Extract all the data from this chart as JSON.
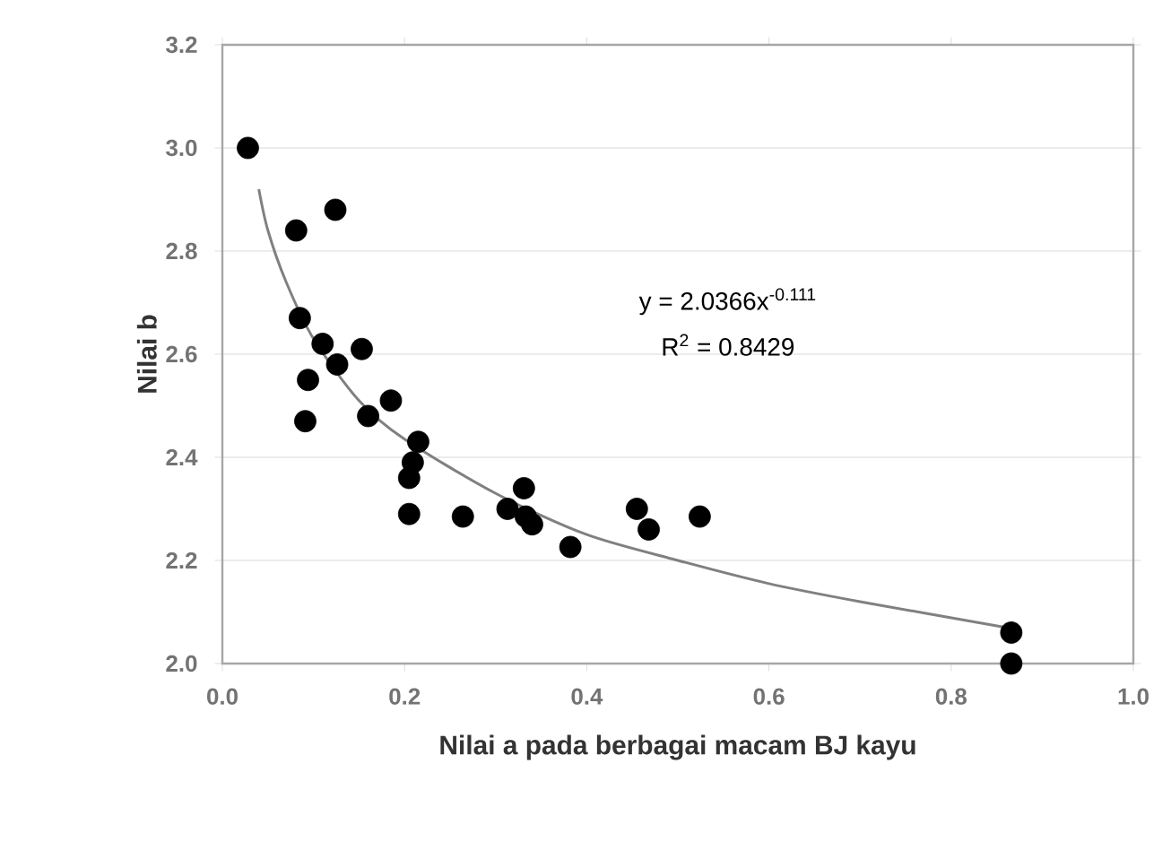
{
  "chart_data": {
    "type": "scatter",
    "xlabel": "Nilai a pada berbagai macam BJ kayu",
    "ylabel": "Nilai b",
    "xlim": [
      0,
      1
    ],
    "xticks": [
      {
        "value": 0,
        "label": "0.0"
      },
      0.2,
      0.4,
      0.6,
      0.8,
      {
        "value": 1,
        "label": "1.0"
      }
    ],
    "ylim": [
      2,
      3.2
    ],
    "yticks": [
      {
        "value": 2,
        "label": "2.0"
      },
      2.2,
      2.4,
      2.6,
      2.8,
      {
        "value": 3,
        "label": "3.0"
      },
      3.2
    ],
    "grid": "y",
    "annotations": [
      "y = 2.0366x$^{-0.111}$",
      "R$^{2}$ = 0.8429"
    ],
    "series": [
      {
        "type": "scatter",
        "color": "#000000",
        "marker": "circle",
        "x": [
          0.028,
          0.081,
          0.124,
          0.085,
          0.11,
          0.153,
          0.126,
          0.094,
          0.091,
          0.16,
          0.185,
          0.215,
          0.209,
          0.205,
          0.205,
          0.264,
          0.331,
          0.333,
          0.313,
          0.34,
          0.382,
          0.455,
          0.468,
          0.524,
          0.866,
          0.866
        ],
        "values": [
          3.0,
          2.84,
          2.88,
          2.67,
          2.62,
          2.61,
          2.58,
          2.55,
          2.47,
          2.48,
          2.51,
          2.43,
          2.39,
          2.36,
          2.29,
          2.285,
          2.34,
          2.285,
          2.3,
          2.27,
          2.226,
          2.3,
          2.26,
          2.285,
          2.06,
          2.0
        ]
      },
      {
        "type": "line",
        "color": "#808080",
        "marker": "none",
        "x": [
          0.04,
          0.05,
          0.07,
          0.1,
          0.15,
          0.2,
          0.3,
          0.4,
          0.5,
          0.6,
          0.7,
          0.86
        ],
        "values": [
          2.92,
          2.84,
          2.74,
          2.63,
          2.51,
          2.435,
          2.33,
          2.25,
          2.2,
          2.155,
          2.12,
          2.07
        ]
      }
    ]
  }
}
